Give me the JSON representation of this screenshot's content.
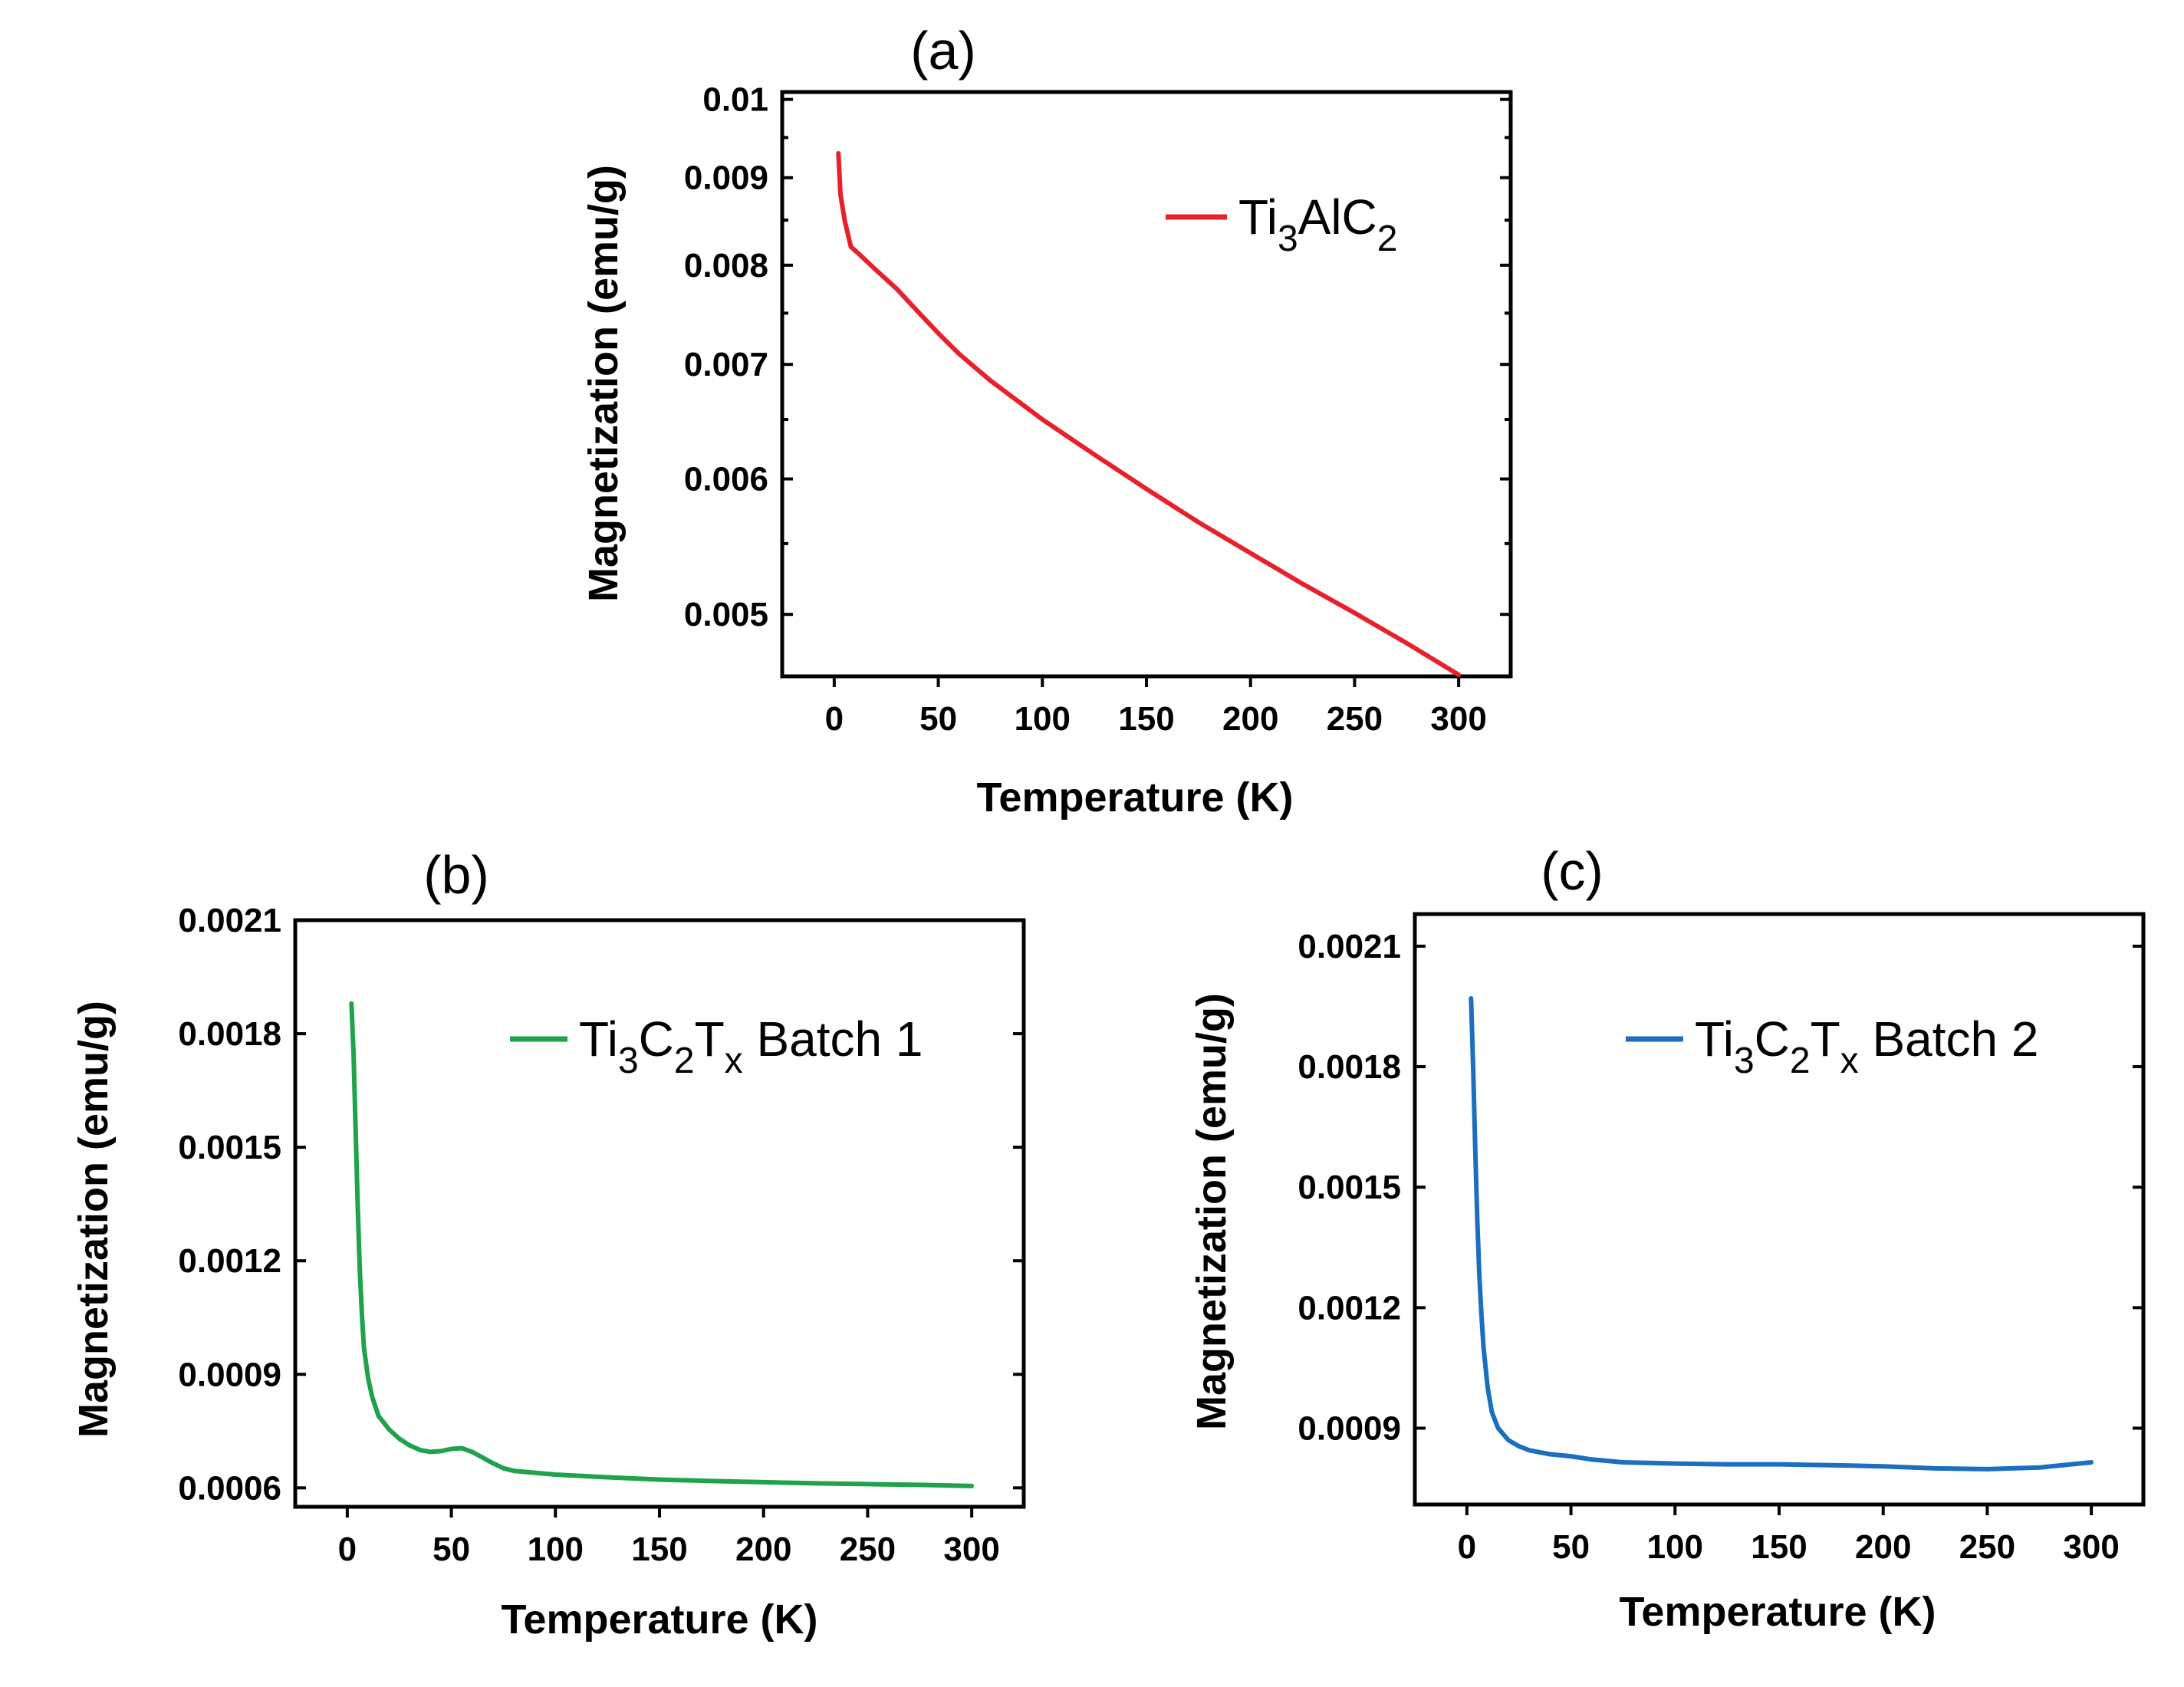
{
  "chart_data": [
    {
      "panel_label": "(a)",
      "type": "line",
      "title": "",
      "xlabel": "Temperature (K)",
      "ylabel": "Magnetization (emu/g)",
      "yscale": "log",
      "xlim": [
        -25,
        325
      ],
      "ylim": [
        0.0046,
        0.0101
      ],
      "xticks": [
        0,
        50,
        100,
        150,
        200,
        250,
        300
      ],
      "xtick_labels": [
        "0",
        "50",
        "100",
        "150",
        "200",
        "250",
        "300"
      ],
      "yticks": [
        0.005,
        0.006,
        0.007,
        0.008,
        0.009,
        0.01
      ],
      "ytick_labels": [
        "0.005",
        "0.006",
        "0.007",
        "0.008",
        "0.009",
        "0.01"
      ],
      "series": [
        {
          "name": "Ti3AlC2",
          "legend": {
            "main": "Ti",
            "sub1": "3",
            "mid": "AlC",
            "sub2": "2",
            "tail": ""
          },
          "color": "#e8202a",
          "x": [
            2,
            3,
            5,
            8,
            12,
            20,
            30,
            40,
            50,
            60,
            75,
            100,
            125,
            150,
            175,
            200,
            225,
            250,
            275,
            300
          ],
          "y": [
            0.0093,
            0.0088,
            0.0085,
            0.0082,
            0.00812,
            0.00795,
            0.00775,
            0.00752,
            0.0073,
            0.0071,
            0.00685,
            0.0065,
            0.0062,
            0.00592,
            0.00566,
            0.00543,
            0.00521,
            0.00501,
            0.00481,
            0.00461
          ]
        }
      ],
      "legend_position": "top-right"
    },
    {
      "panel_label": "(b)",
      "type": "line",
      "title": "",
      "xlabel": "Temperature (K)",
      "ylabel": "Magnetization (emu/g)",
      "yscale": "linear",
      "xlim": [
        -25,
        325
      ],
      "ylim": [
        0.00055,
        0.0021
      ],
      "xticks": [
        0,
        50,
        100,
        150,
        200,
        250,
        300
      ],
      "xtick_labels": [
        "0",
        "50",
        "100",
        "150",
        "200",
        "250",
        "300"
      ],
      "yticks": [
        0.0006,
        0.0009,
        0.0012,
        0.0015,
        0.0018,
        0.0021
      ],
      "ytick_labels": [
        "0.0006",
        "0.0009",
        "0.0012",
        "0.0015",
        "0.0018",
        "0.0021"
      ],
      "series": [
        {
          "name": "Ti3C2Tx Batch 1",
          "legend": {
            "main": "Ti",
            "sub1": "3",
            "mid": "C",
            "sub2": "2",
            "mid2": "T",
            "sub3": "x",
            "tail": " Batch 1"
          },
          "color": "#1fa24a",
          "x": [
            2,
            3,
            4,
            5,
            6,
            7,
            8,
            10,
            12,
            15,
            20,
            25,
            30,
            35,
            40,
            45,
            50,
            55,
            60,
            65,
            70,
            75,
            80,
            90,
            100,
            125,
            150,
            175,
            200,
            225,
            250,
            275,
            300
          ],
          "y": [
            0.00188,
            0.00175,
            0.00155,
            0.00135,
            0.00118,
            0.00106,
            0.00097,
            0.00089,
            0.00084,
            0.00079,
            0.000755,
            0.00073,
            0.000712,
            0.0007,
            0.000695,
            0.000697,
            0.000703,
            0.000705,
            0.000695,
            0.00068,
            0.000665,
            0.000652,
            0.000645,
            0.00064,
            0.000635,
            0.000628,
            0.000622,
            0.000618,
            0.000615,
            0.000612,
            0.00061,
            0.000608,
            0.000605
          ]
        }
      ],
      "legend_position": "top-right"
    },
    {
      "panel_label": "(c)",
      "type": "line",
      "title": "",
      "xlabel": "Temperature (K)",
      "ylabel": "Magnetization (emu/g)",
      "yscale": "linear",
      "xlim": [
        -25,
        325
      ],
      "ylim": [
        0.00071,
        0.00218
      ],
      "xticks": [
        0,
        50,
        100,
        150,
        200,
        250,
        300
      ],
      "xtick_labels": [
        "0",
        "50",
        "100",
        "150",
        "200",
        "250",
        "300"
      ],
      "yticks": [
        0.0009,
        0.0012,
        0.0015,
        0.0018,
        0.0021
      ],
      "ytick_labels": [
        "0.0009",
        "0.0012",
        "0.0015",
        "0.0018",
        "0.0021"
      ],
      "series": [
        {
          "name": "Ti3C2Tx Batch 2",
          "legend": {
            "main": "Ti",
            "sub1": "3",
            "mid": "C",
            "sub2": "2",
            "mid2": "T",
            "sub3": "x",
            "tail": " Batch 2"
          },
          "color": "#1a6fc0",
          "x": [
            2,
            3,
            4,
            5,
            6,
            7,
            8,
            10,
            12,
            15,
            20,
            25,
            30,
            40,
            50,
            60,
            75,
            100,
            125,
            150,
            175,
            200,
            225,
            250,
            275,
            300
          ],
          "y": [
            0.00197,
            0.0018,
            0.0016,
            0.00142,
            0.00128,
            0.00118,
            0.0011,
            0.001,
            0.00094,
            0.0009,
            0.00087,
            0.000855,
            0.000845,
            0.000835,
            0.00083,
            0.000822,
            0.000815,
            0.000812,
            0.00081,
            0.00081,
            0.000808,
            0.000805,
            0.0008,
            0.000798,
            0.000802,
            0.000815
          ]
        }
      ],
      "legend_position": "top-right"
    }
  ]
}
